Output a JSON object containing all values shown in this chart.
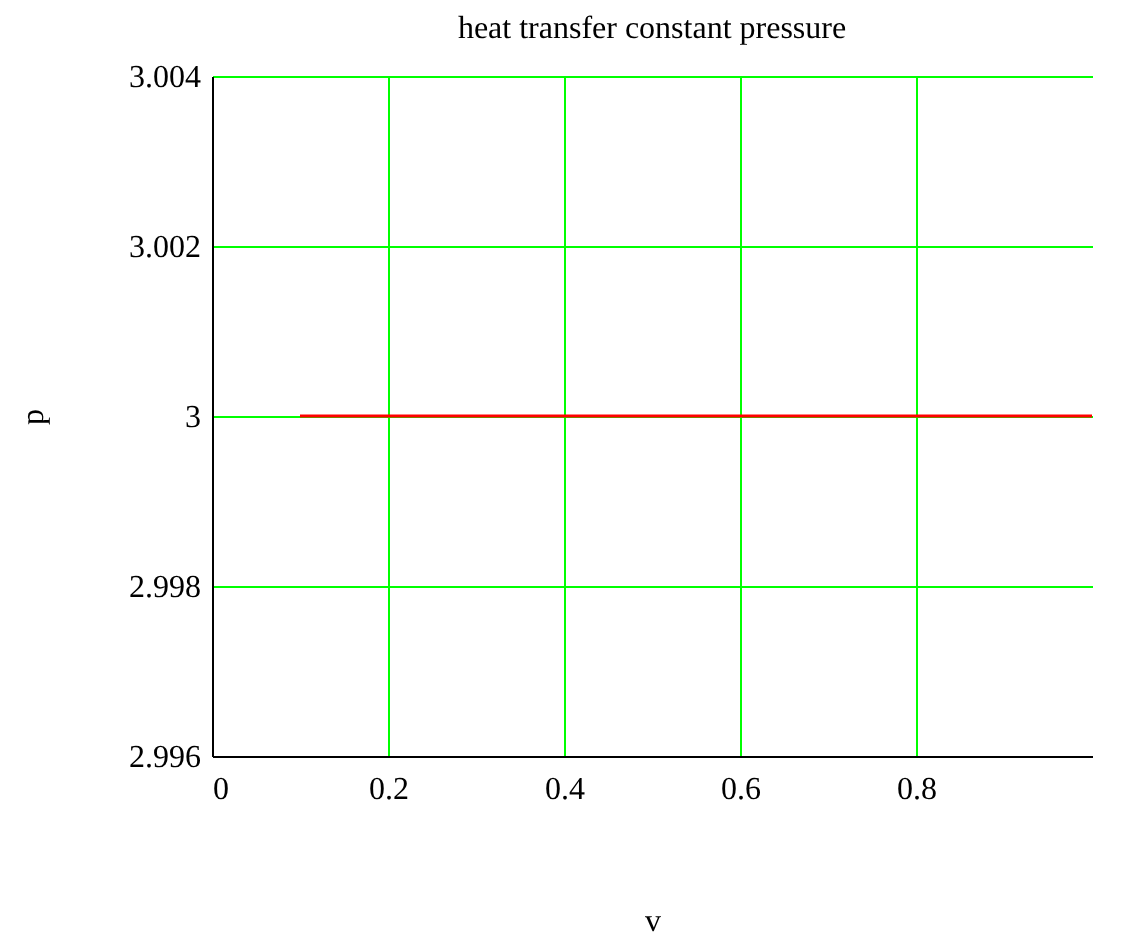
{
  "chart_data": {
    "type": "line",
    "title": "heat transfer constant pressure",
    "xlabel": "v",
    "ylabel": "p",
    "x": [
      0.1,
      1.0
    ],
    "series": [
      {
        "color": "#ff0000",
        "values": [
          3,
          3
        ]
      }
    ],
    "xlim": [
      0,
      1
    ],
    "xticks": [
      0,
      0.2,
      0.4,
      0.6,
      0.8
    ],
    "ylim": [
      2.996,
      3.004
    ],
    "yticks": [
      2.996,
      2.998,
      3,
      3.002,
      3.004
    ],
    "grid": true,
    "marker": "none",
    "line_style": "solid"
  }
}
